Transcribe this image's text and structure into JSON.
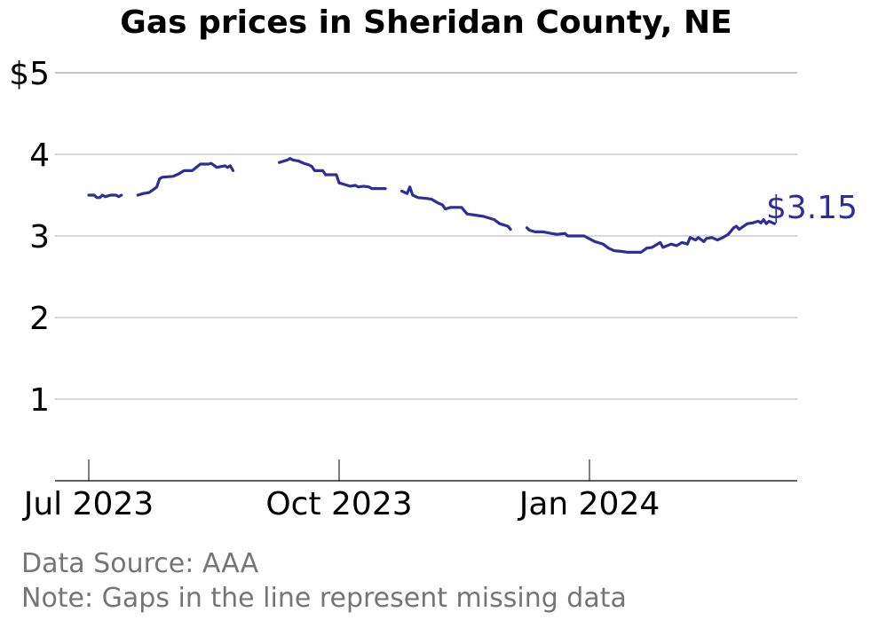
{
  "chart_data": {
    "type": "line",
    "title": "Gas prices in Sheridan County, NE",
    "xlabel": "",
    "ylabel": "",
    "ylim": [
      0,
      5
    ],
    "y_ticks": [
      {
        "value": 1,
        "label": "1"
      },
      {
        "value": 2,
        "label": "2"
      },
      {
        "value": 3,
        "label": "3"
      },
      {
        "value": 4,
        "label": "4"
      },
      {
        "value": 5,
        "label": "$5"
      }
    ],
    "x_ticks": [
      {
        "date": "2023-07-01",
        "label": "Jul 2023"
      },
      {
        "date": "2023-10-01",
        "label": "Oct 2023"
      },
      {
        "date": "2024-01-01",
        "label": "Jan 2024"
      }
    ],
    "grid": true,
    "end_label": "$3.15",
    "line_color": "#2e2e9a",
    "grid_color": "#b3b3b3",
    "series": [
      {
        "values": [
          [
            "2023-07-01",
            3.5
          ],
          [
            "2023-07-03",
            3.5
          ],
          [
            "2023-07-04",
            3.47
          ],
          [
            "2023-07-05",
            3.47
          ],
          [
            "2023-07-06",
            3.5
          ],
          [
            "2023-07-07",
            3.48
          ],
          [
            "2023-07-09",
            3.5
          ],
          [
            "2023-07-11",
            3.5
          ],
          [
            "2023-07-12",
            3.48
          ],
          [
            "2023-07-13",
            3.5
          ],
          [
            "2023-07-19",
            3.5
          ],
          [
            "2023-07-21",
            3.52
          ],
          [
            "2023-07-23",
            3.53
          ],
          [
            "2023-07-24",
            3.55
          ],
          [
            "2023-07-26",
            3.6
          ],
          [
            "2023-07-27",
            3.7
          ],
          [
            "2023-07-28",
            3.72
          ],
          [
            "2023-08-01",
            3.73
          ],
          [
            "2023-08-03",
            3.76
          ],
          [
            "2023-08-05",
            3.8
          ],
          [
            "2023-08-08",
            3.8
          ],
          [
            "2023-08-11",
            3.88
          ],
          [
            "2023-08-14",
            3.88
          ],
          [
            "2023-08-15",
            3.89
          ],
          [
            "2023-08-17",
            3.84
          ],
          [
            "2023-08-20",
            3.86
          ],
          [
            "2023-08-21",
            3.84
          ],
          [
            "2023-08-22",
            3.86
          ],
          [
            "2023-08-23",
            3.8
          ],
          [
            "2023-08-29",
            3.8
          ],
          [
            "2023-09-09",
            3.9
          ],
          [
            "2023-09-12",
            3.93
          ],
          [
            "2023-09-13",
            3.95
          ],
          [
            "2023-09-14",
            3.93
          ],
          [
            "2023-09-16",
            3.92
          ],
          [
            "2023-09-18",
            3.89
          ],
          [
            "2023-09-20",
            3.87
          ],
          [
            "2023-09-21",
            3.85
          ],
          [
            "2023-09-22",
            3.8
          ],
          [
            "2023-09-25",
            3.8
          ],
          [
            "2023-09-26",
            3.75
          ],
          [
            "2023-09-30",
            3.75
          ],
          [
            "2023-10-01",
            3.65
          ],
          [
            "2023-10-03",
            3.63
          ],
          [
            "2023-10-05",
            3.61
          ],
          [
            "2023-10-07",
            3.62
          ],
          [
            "2023-10-08",
            3.6
          ],
          [
            "2023-10-10",
            3.61
          ],
          [
            "2023-10-12",
            3.6
          ],
          [
            "2023-10-13",
            3.58
          ],
          [
            "2023-10-18",
            3.58
          ],
          [
            "2023-10-24",
            3.55
          ],
          [
            "2023-10-26",
            3.52
          ],
          [
            "2023-10-27",
            3.6
          ],
          [
            "2023-10-28",
            3.5
          ],
          [
            "2023-10-30",
            3.47
          ],
          [
            "2023-11-02",
            3.46
          ],
          [
            "2023-11-04",
            3.45
          ],
          [
            "2023-11-06",
            3.41
          ],
          [
            "2023-11-08",
            3.38
          ],
          [
            "2023-11-09",
            3.33
          ],
          [
            "2023-11-11",
            3.35
          ],
          [
            "2023-11-15",
            3.35
          ],
          [
            "2023-11-17",
            3.27
          ],
          [
            "2023-11-21",
            3.25
          ],
          [
            "2023-11-23",
            3.24
          ],
          [
            "2023-11-27",
            3.2
          ],
          [
            "2023-11-29",
            3.15
          ],
          [
            "2023-12-02",
            3.12
          ],
          [
            "2023-12-03",
            3.08
          ],
          [
            "2023-12-09",
            3.1
          ],
          [
            "2023-12-10",
            3.07
          ],
          [
            "2023-12-12",
            3.05
          ],
          [
            "2023-12-15",
            3.05
          ],
          [
            "2023-12-18",
            3.03
          ],
          [
            "2023-12-20",
            3.02
          ],
          [
            "2023-12-23",
            3.03
          ],
          [
            "2023-12-24",
            3.0
          ],
          [
            "2023-12-27",
            3.0
          ],
          [
            "2023-12-30",
            3.0
          ],
          [
            "2024-01-03",
            2.93
          ],
          [
            "2024-01-06",
            2.9
          ],
          [
            "2024-01-08",
            2.85
          ],
          [
            "2024-01-10",
            2.82
          ],
          [
            "2024-01-13",
            2.81
          ],
          [
            "2024-01-15",
            2.8
          ],
          [
            "2024-01-20",
            2.8
          ],
          [
            "2024-01-22",
            2.85
          ],
          [
            "2024-01-24",
            2.86
          ],
          [
            "2024-01-26",
            2.9
          ],
          [
            "2024-01-27",
            2.92
          ],
          [
            "2024-01-28",
            2.86
          ],
          [
            "2024-01-31",
            2.9
          ],
          [
            "2024-02-02",
            2.88
          ],
          [
            "2024-02-04",
            2.92
          ],
          [
            "2024-02-06",
            2.9
          ],
          [
            "2024-02-07",
            2.98
          ],
          [
            "2024-02-09",
            2.95
          ],
          [
            "2024-02-10",
            2.98
          ],
          [
            "2024-02-12",
            2.93
          ],
          [
            "2024-02-13",
            2.97
          ],
          [
            "2024-02-15",
            2.98
          ],
          [
            "2024-02-17",
            2.95
          ],
          [
            "2024-02-19",
            2.98
          ],
          [
            "2024-02-21",
            3.02
          ],
          [
            "2024-02-23",
            3.1
          ],
          [
            "2024-02-24",
            3.12
          ],
          [
            "2024-02-25",
            3.08
          ],
          [
            "2024-02-28",
            3.15
          ],
          [
            "2024-03-01",
            3.16
          ],
          [
            "2024-03-03",
            3.18
          ],
          [
            "2024-03-04",
            3.16
          ],
          [
            "2024-03-05",
            3.2
          ],
          [
            "2024-03-06",
            3.15
          ],
          [
            "2024-03-07",
            3.18
          ],
          [
            "2024-03-09",
            3.15
          ]
        ]
      }
    ]
  },
  "footnotes": {
    "source": "Data Source: AAA",
    "note": "Note: Gaps in the line represent missing data"
  }
}
